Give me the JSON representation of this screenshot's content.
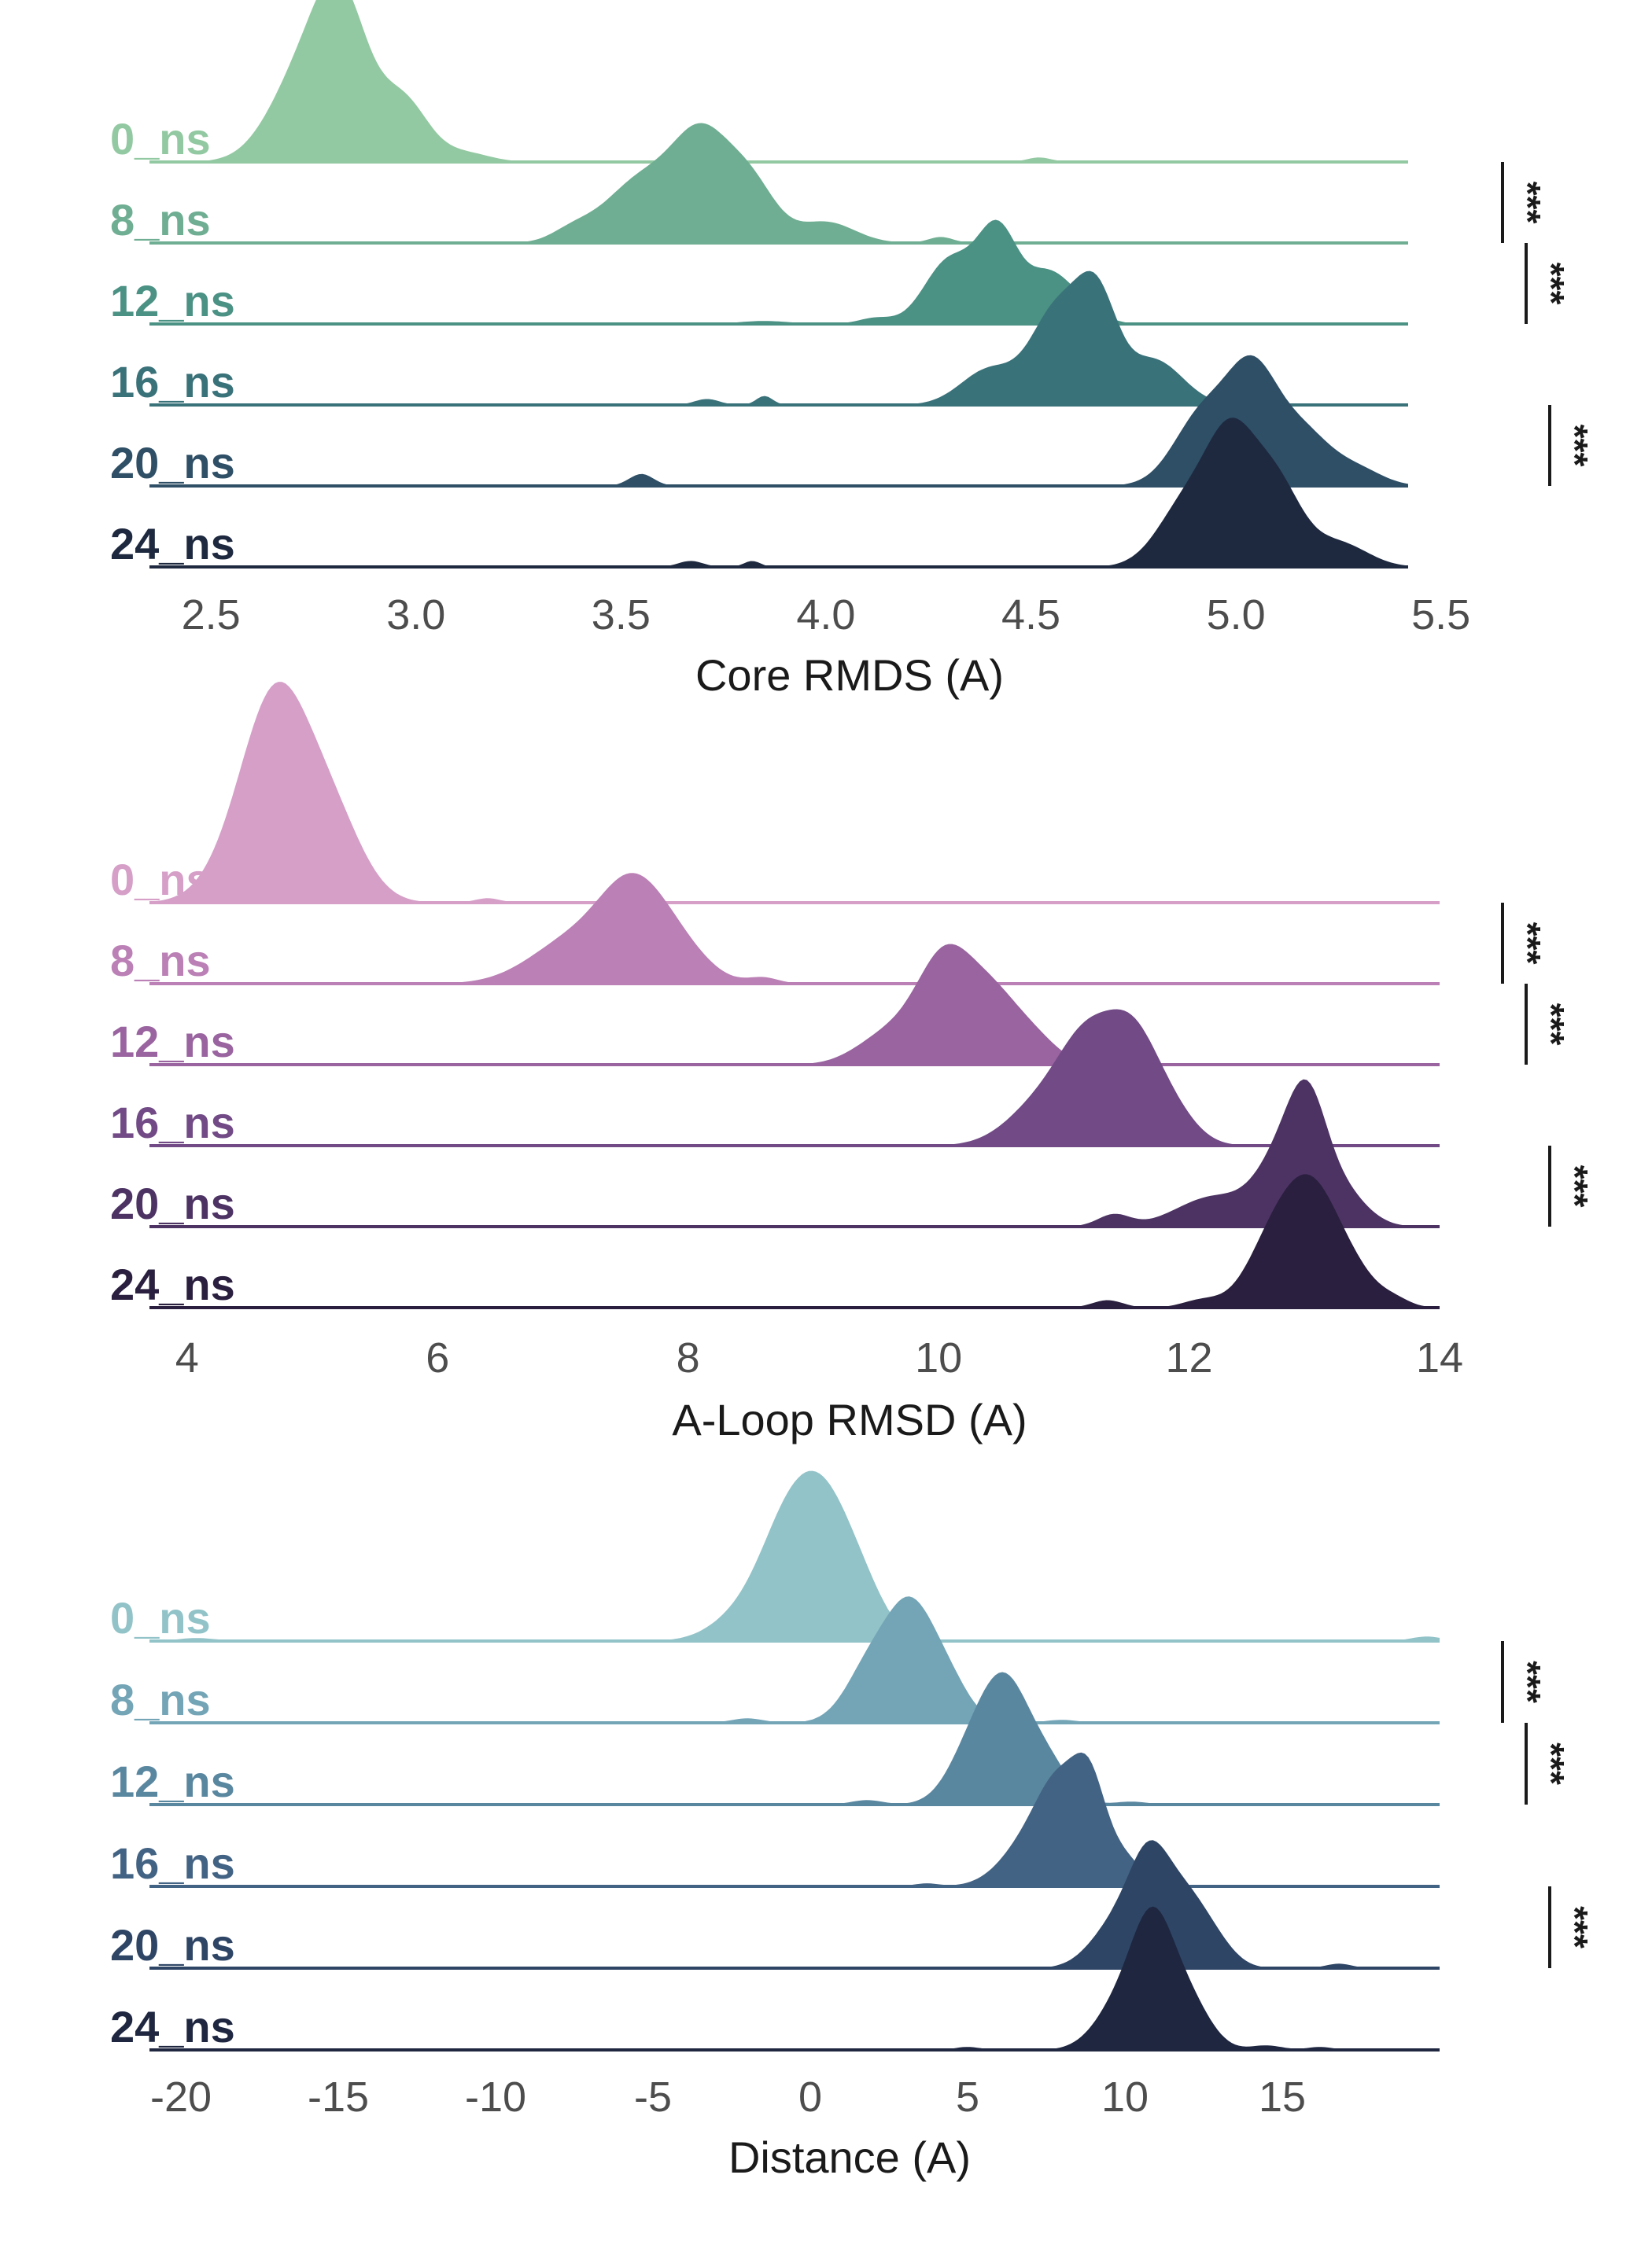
{
  "chart_data": [
    {
      "type": "ridgeline",
      "xlabel": "Core RMDS (A)",
      "xlim": [
        2.35,
        5.42
      ],
      "xticks": [
        "2.5",
        "3.0",
        "3.5",
        "4.0",
        "4.5",
        "5.0",
        "5.5"
      ],
      "xtick_values": [
        2.5,
        3.0,
        3.5,
        4.0,
        4.5,
        5.0,
        5.5
      ],
      "colors": [
        "#93c9a2",
        "#6fae92",
        "#4b9184",
        "#3a727a",
        "#2e4f66",
        "#1e2940"
      ],
      "series": [
        {
          "name": "0_ns",
          "peaks": [
            [
              2.72,
              0.55,
              0.08
            ],
            [
              2.82,
              0.95,
              0.065
            ],
            [
              2.97,
              0.4,
              0.06
            ],
            [
              3.12,
              0.06,
              0.06
            ],
            [
              4.52,
              0.03,
              0.03
            ]
          ]
        },
        {
          "name": "8_ns",
          "peaks": [
            [
              3.38,
              0.07,
              0.05
            ],
            [
              3.55,
              0.42,
              0.09
            ],
            [
              3.7,
              0.65,
              0.07
            ],
            [
              3.82,
              0.35,
              0.06
            ],
            [
              4.0,
              0.14,
              0.07
            ],
            [
              4.28,
              0.04,
              0.03
            ]
          ]
        },
        {
          "name": "12_ns",
          "peaks": [
            [
              3.85,
              0.02,
              0.06
            ],
            [
              4.12,
              0.04,
              0.04
            ],
            [
              4.3,
              0.42,
              0.06
            ],
            [
              4.42,
              0.62,
              0.05
            ],
            [
              4.54,
              0.3,
              0.05
            ],
            [
              4.62,
              0.12,
              0.05
            ]
          ]
        },
        {
          "name": "16_ns",
          "peaks": [
            [
              3.71,
              0.04,
              0.03
            ],
            [
              3.85,
              0.06,
              0.02
            ],
            [
              4.4,
              0.24,
              0.07
            ],
            [
              4.56,
              0.6,
              0.06
            ],
            [
              4.66,
              0.68,
              0.05
            ],
            [
              4.8,
              0.3,
              0.07
            ]
          ]
        },
        {
          "name": "20_ns",
          "peaks": [
            [
              3.55,
              0.08,
              0.03
            ],
            [
              4.92,
              0.48,
              0.07
            ],
            [
              5.04,
              0.68,
              0.06
            ],
            [
              5.16,
              0.36,
              0.07
            ],
            [
              5.3,
              0.1,
              0.06
            ]
          ]
        },
        {
          "name": "24_ns",
          "peaks": [
            [
              3.67,
              0.04,
              0.03
            ],
            [
              3.82,
              0.04,
              0.02
            ],
            [
              4.88,
              0.42,
              0.07
            ],
            [
              4.99,
              0.78,
              0.06
            ],
            [
              5.1,
              0.52,
              0.06
            ],
            [
              5.25,
              0.16,
              0.07
            ]
          ]
        }
      ],
      "annotations": [
        {
          "between": [
            "0_ns",
            "8_ns"
          ],
          "text": "***"
        },
        {
          "between": [
            "8_ns",
            "12_ns"
          ],
          "text": "***"
        },
        {
          "between": [
            "16_ns",
            "20_ns"
          ],
          "text": "***"
        }
      ]
    },
    {
      "type": "ridgeline",
      "xlabel": "A-Loop RMSD (A)",
      "xlim": [
        3.7,
        14.0
      ],
      "xticks": [
        "4",
        "6",
        "8",
        "10",
        "12",
        "14"
      ],
      "xtick_values": [
        4,
        6,
        8,
        10,
        12,
        14
      ],
      "colors": [
        "#d59fc8",
        "#bb80b5",
        "#99649f",
        "#714a86",
        "#4d3364",
        "#2a1f3e"
      ],
      "series": [
        {
          "name": "0_ns",
          "peaks": [
            [
              4.55,
              0.55,
              0.28
            ],
            [
              4.75,
              0.9,
              0.25
            ],
            [
              5.15,
              0.55,
              0.25
            ],
            [
              6.4,
              0.03,
              0.1
            ]
          ]
        },
        {
          "name": "8_ns",
          "peaks": [
            [
              7.1,
              0.3,
              0.35
            ],
            [
              7.55,
              0.52,
              0.25
            ],
            [
              7.9,
              0.24,
              0.25
            ],
            [
              8.6,
              0.04,
              0.12
            ]
          ]
        },
        {
          "name": "12_ns",
          "peaks": [
            [
              9.6,
              0.2,
              0.25
            ],
            [
              10.05,
              0.68,
              0.22
            ],
            [
              10.45,
              0.42,
              0.22
            ],
            [
              10.8,
              0.12,
              0.18
            ]
          ]
        },
        {
          "name": "16_ns",
          "peaks": [
            [
              10.85,
              0.3,
              0.28
            ],
            [
              11.2,
              0.58,
              0.22
            ],
            [
              11.55,
              0.62,
              0.2
            ],
            [
              11.85,
              0.22,
              0.2
            ]
          ]
        },
        {
          "name": "20_ns",
          "peaks": [
            [
              11.4,
              0.08,
              0.13
            ],
            [
              12.2,
              0.2,
              0.3
            ],
            [
              12.75,
              0.45,
              0.2
            ],
            [
              12.95,
              0.58,
              0.15
            ],
            [
              13.2,
              0.25,
              0.2
            ]
          ]
        },
        {
          "name": "24_ns",
          "peaks": [
            [
              11.35,
              0.05,
              0.12
            ],
            [
              12.1,
              0.05,
              0.15
            ],
            [
              12.7,
              0.5,
              0.22
            ],
            [
              13.0,
              0.6,
              0.2
            ],
            [
              13.3,
              0.22,
              0.2
            ],
            [
              13.65,
              0.04,
              0.12
            ]
          ]
        }
      ],
      "annotations": [
        {
          "between": [
            "0_ns",
            "8_ns"
          ],
          "text": "***"
        },
        {
          "between": [
            "8_ns",
            "12_ns"
          ],
          "text": "***"
        },
        {
          "between": [
            "16_ns",
            "20_ns"
          ],
          "text": "***"
        }
      ]
    },
    {
      "type": "ridgeline",
      "xlabel": "Distance (A)",
      "xlim": [
        -21.0,
        20.0
      ],
      "xticks": [
        "-20",
        "-15",
        "-10",
        "-5",
        "0",
        "5",
        "10",
        "15"
      ],
      "xtick_values": [
        -20,
        -15,
        -10,
        -5,
        0,
        5,
        10,
        15
      ],
      "colors": [
        "#92c3c8",
        "#73a5b7",
        "#5a87a0",
        "#436384",
        "#2e4565",
        "#1e2640"
      ],
      "series": [
        {
          "name": "0_ns",
          "peaks": [
            [
              -2.0,
              0.2,
              1.0
            ],
            [
              -0.9,
              0.45,
              0.8
            ],
            [
              0.3,
              0.88,
              0.9
            ],
            [
              1.6,
              0.3,
              0.8
            ],
            [
              -19.5,
              0.02,
              0.6
            ],
            [
              19.6,
              0.03,
              0.5
            ]
          ]
        },
        {
          "name": "8_ns",
          "peaks": [
            [
              -2.0,
              0.03,
              0.5
            ],
            [
              2.0,
              0.42,
              0.8
            ],
            [
              3.2,
              0.62,
              0.7
            ],
            [
              4.3,
              0.3,
              0.7
            ],
            [
              8.0,
              0.02,
              0.5
            ]
          ]
        },
        {
          "name": "12_ns",
          "peaks": [
            [
              1.8,
              0.03,
              0.5
            ],
            [
              5.3,
              0.45,
              0.8
            ],
            [
              6.3,
              0.6,
              0.7
            ],
            [
              7.5,
              0.28,
              0.7
            ],
            [
              10.2,
              0.02,
              0.5
            ]
          ]
        },
        {
          "name": "16_ns",
          "peaks": [
            [
              3.7,
              0.02,
              0.4
            ],
            [
              7.0,
              0.3,
              0.9
            ],
            [
              8.0,
              0.55,
              0.7
            ],
            [
              8.9,
              0.52,
              0.5
            ],
            [
              9.9,
              0.2,
              0.6
            ]
          ]
        },
        {
          "name": "20_ns",
          "peaks": [
            [
              9.7,
              0.28,
              0.8
            ],
            [
              10.8,
              0.65,
              0.65
            ],
            [
              12.0,
              0.42,
              0.7
            ],
            [
              13.0,
              0.1,
              0.6
            ],
            [
              16.8,
              0.03,
              0.4
            ]
          ]
        },
        {
          "name": "24_ns",
          "peaks": [
            [
              5.0,
              0.02,
              0.4
            ],
            [
              9.9,
              0.32,
              0.8
            ],
            [
              10.9,
              0.72,
              0.65
            ],
            [
              12.0,
              0.32,
              0.7
            ],
            [
              14.5,
              0.03,
              0.5
            ],
            [
              16.2,
              0.02,
              0.4
            ]
          ]
        }
      ],
      "annotations": [
        {
          "between": [
            "0_ns",
            "8_ns"
          ],
          "text": "***"
        },
        {
          "between": [
            "8_ns",
            "12_ns"
          ],
          "text": "***"
        },
        {
          "between": [
            "16_ns",
            "20_ns"
          ],
          "text": "***"
        }
      ]
    }
  ]
}
